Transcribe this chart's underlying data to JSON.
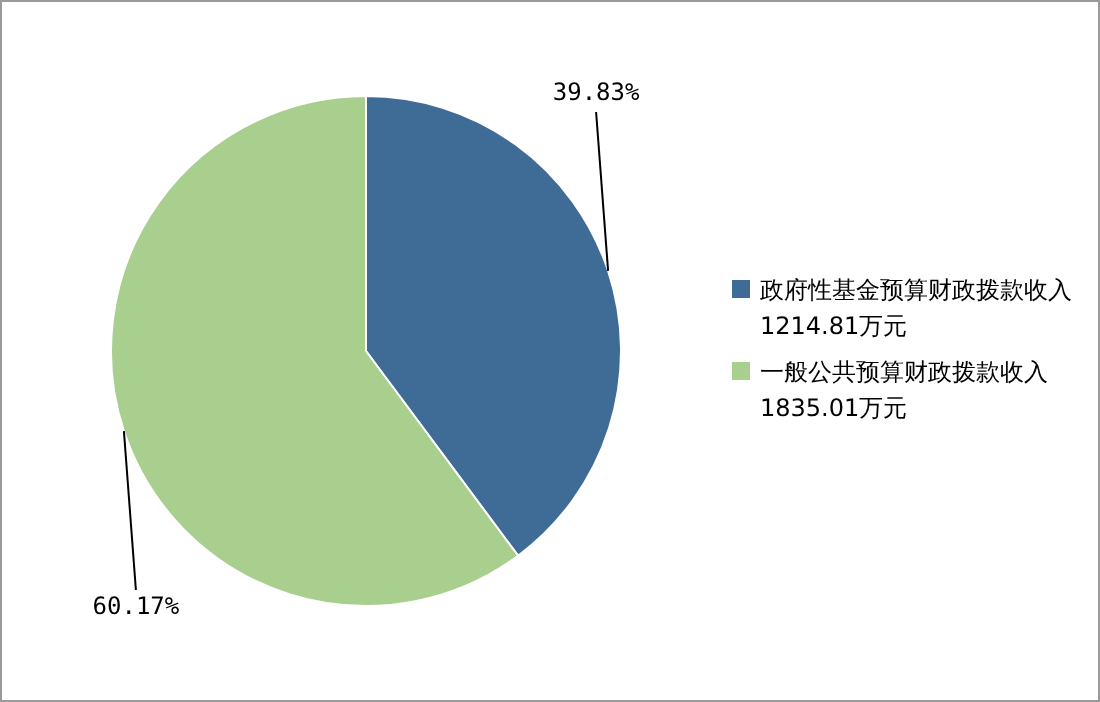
{
  "chart_data": {
    "type": "pie",
    "categories": [
      "政府性基金预算财政拨款收入1214.81万元",
      "一般公共预算财政拨款收入1835.01万元"
    ],
    "values": [
      39.83,
      60.17
    ],
    "colors": [
      "#3f6b97",
      "#a8cf8e"
    ],
    "value_labels": [
      "39.83%",
      "60.17%"
    ],
    "legend": "right"
  }
}
